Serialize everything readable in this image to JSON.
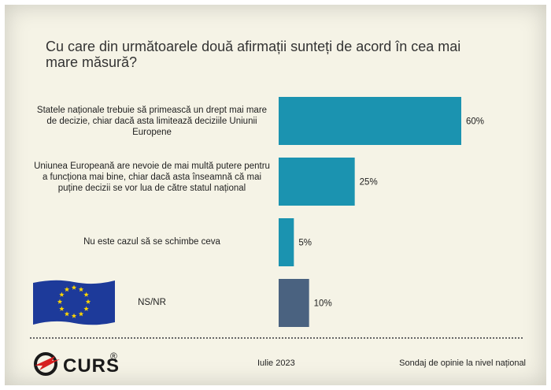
{
  "chart_data": {
    "type": "bar",
    "orientation": "horizontal",
    "title": "Cu care din următoarele două afirmații sunteți de acord în cea mai mare măsură?",
    "categories": [
      "Statele naționale trebuie să primească un drept mai mare de decizie, chiar dacă asta limitează deciziile Uniunii Europene",
      "Uniunea Europeană are nevoie de mai multă putere pentru a funcționa mai bine, chiar dacă asta înseamnă că mai puține decizii se vor lua de către statul național",
      "Nu este cazul să se schimbe ceva",
      "NS/NR"
    ],
    "values": [
      60,
      25,
      5,
      10
    ],
    "value_labels": [
      "60%",
      "25%",
      "5%",
      "10%"
    ],
    "colors": [
      "#1b93b0",
      "#1b93b0",
      "#1b93b0",
      "#4a6280"
    ],
    "grid": false,
    "xlim": [
      0,
      60
    ]
  },
  "footer": {
    "logo_text": "CURS",
    "logo_reg": "®",
    "date": "Iulie 2023",
    "survey": "Sondaj de opinie la nivel național"
  },
  "icons": {
    "flag": "eu-flag-icon",
    "logo": "curs-logo-icon"
  }
}
